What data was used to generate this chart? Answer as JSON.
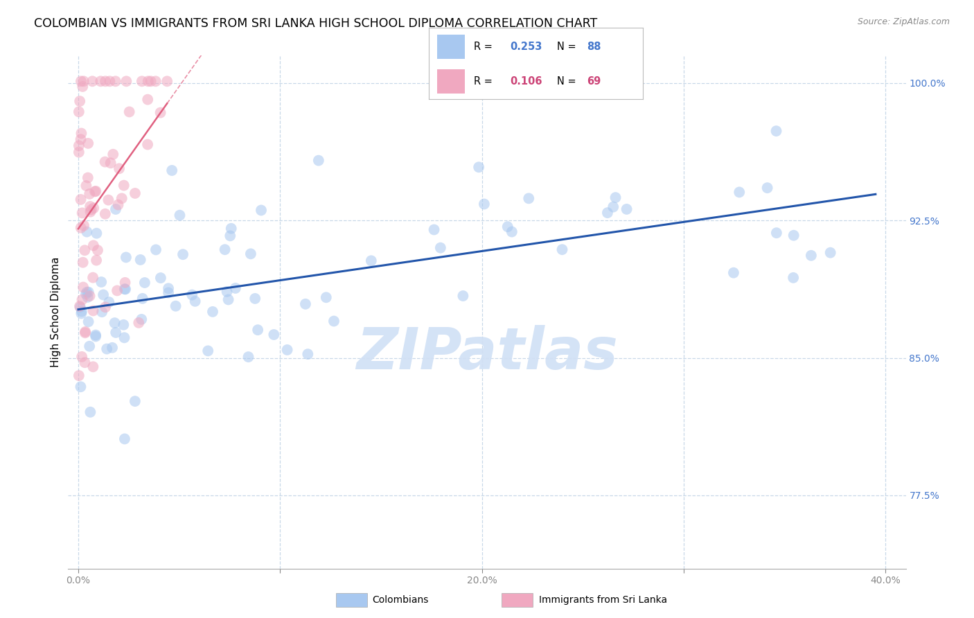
{
  "title": "COLOMBIAN VS IMMIGRANTS FROM SRI LANKA HIGH SCHOOL DIPLOMA CORRELATION CHART",
  "source": "Source: ZipAtlas.com",
  "ylabel": "High School Diploma",
  "xlim": [
    -0.005,
    0.41
  ],
  "ylim": [
    0.735,
    1.015
  ],
  "xticks": [
    0.0,
    0.1,
    0.2,
    0.3,
    0.4
  ],
  "xticklabels": [
    "0.0%",
    "",
    "20.0%",
    "",
    "40.0%"
  ],
  "yticks": [
    0.775,
    0.85,
    0.925,
    1.0
  ],
  "yticklabels": [
    "77.5%",
    "85.0%",
    "92.5%",
    "100.0%"
  ],
  "watermark": "ZIPatlas",
  "blue_color": "#a8c8f0",
  "pink_color": "#f0a8c0",
  "blue_line_color": "#2255aa",
  "pink_line_color": "#e06080",
  "background_color": "#ffffff",
  "grid_color": "#c8d8e8",
  "title_fontsize": 12.5,
  "axis_label_fontsize": 11,
  "tick_fontsize": 10,
  "dot_size": 130,
  "dot_alpha": 0.55,
  "watermark_color": "#d0e0f5",
  "watermark_alpha": 0.9,
  "watermark_fontsize": 60,
  "R_colombian": 0.253,
  "N_colombian": 88,
  "R_srilanka": 0.106,
  "N_srilanka": 69,
  "legend_blue_R": "0.253",
  "legend_blue_N": "88",
  "legend_pink_R": "0.106",
  "legend_pink_N": "69",
  "col_blue": "#4477cc",
  "col_pink": "#cc4477"
}
